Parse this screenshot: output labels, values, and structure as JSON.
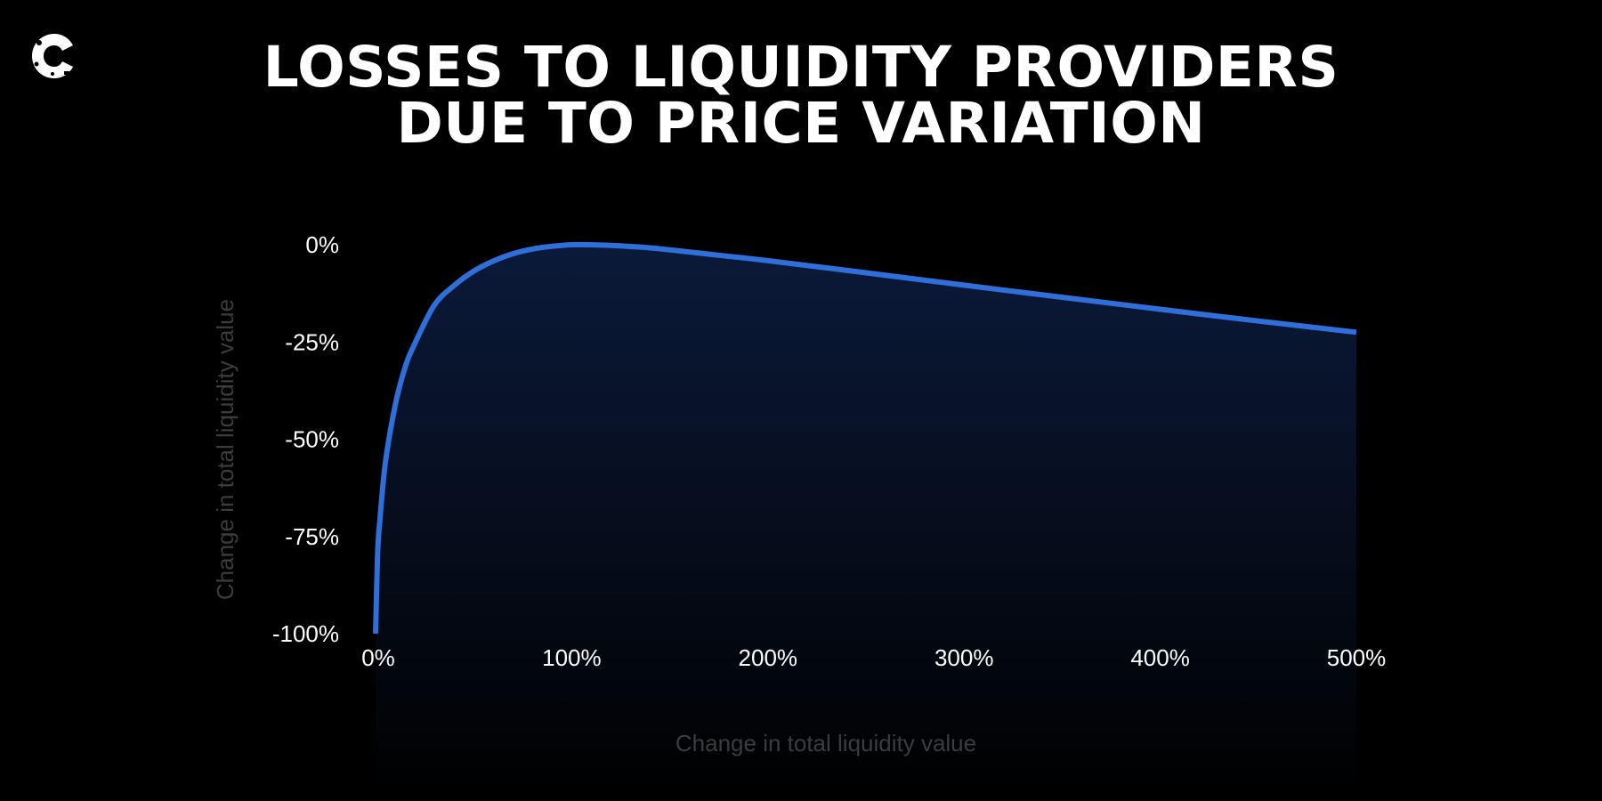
{
  "title_lines": [
    "LOSSES TO LIQUIDITY PROVIDERS",
    "DUE TO PRICE VARIATION"
  ],
  "logo_icon": "c-brand-logo-icon",
  "colors": {
    "background": "#000000",
    "line": "#2f6fd9",
    "fill_top": "#0b1a3a",
    "tick_text": "#ffffff",
    "axis_label_text": "#3c3c3c"
  },
  "chart_data": {
    "type": "area",
    "title": "LOSSES TO LIQUIDITY PROVIDERS DUE TO PRICE VARIATION",
    "xlabel": "Change in total liquidity value",
    "ylabel": "Change in total liquidity value",
    "xlim": [
      0,
      500
    ],
    "ylim": [
      -100,
      0
    ],
    "x_ticks": [
      0,
      100,
      200,
      300,
      400,
      500
    ],
    "x_tick_labels": [
      "0%",
      "100%",
      "200%",
      "300%",
      "400%",
      "500%"
    ],
    "y_ticks": [
      0,
      -25,
      -50,
      -75,
      -100
    ],
    "y_tick_labels": [
      "0%",
      "-25%",
      "-50%",
      "-75%",
      "-100%"
    ],
    "grid": false,
    "legend": "none",
    "series": [
      {
        "x": [
          0,
          1,
          2,
          5,
          10,
          15,
          20,
          30,
          40,
          50,
          60,
          70,
          80,
          90,
          100,
          110,
          125,
          140,
          150,
          175,
          200,
          250,
          300,
          350,
          400,
          450,
          500
        ],
        "y": [
          -100,
          -80,
          -72,
          -56,
          -41.3,
          -31.6,
          -25.4,
          -15.5,
          -10.5,
          -6.8,
          -4.2,
          -2.3,
          -1.1,
          -0.4,
          0,
          0,
          -0.3,
          -0.8,
          -1.3,
          -2.7,
          -4.1,
          -7.2,
          -10.4,
          -13.5,
          -16.6,
          -19.6,
          -22.5
        ]
      }
    ]
  }
}
